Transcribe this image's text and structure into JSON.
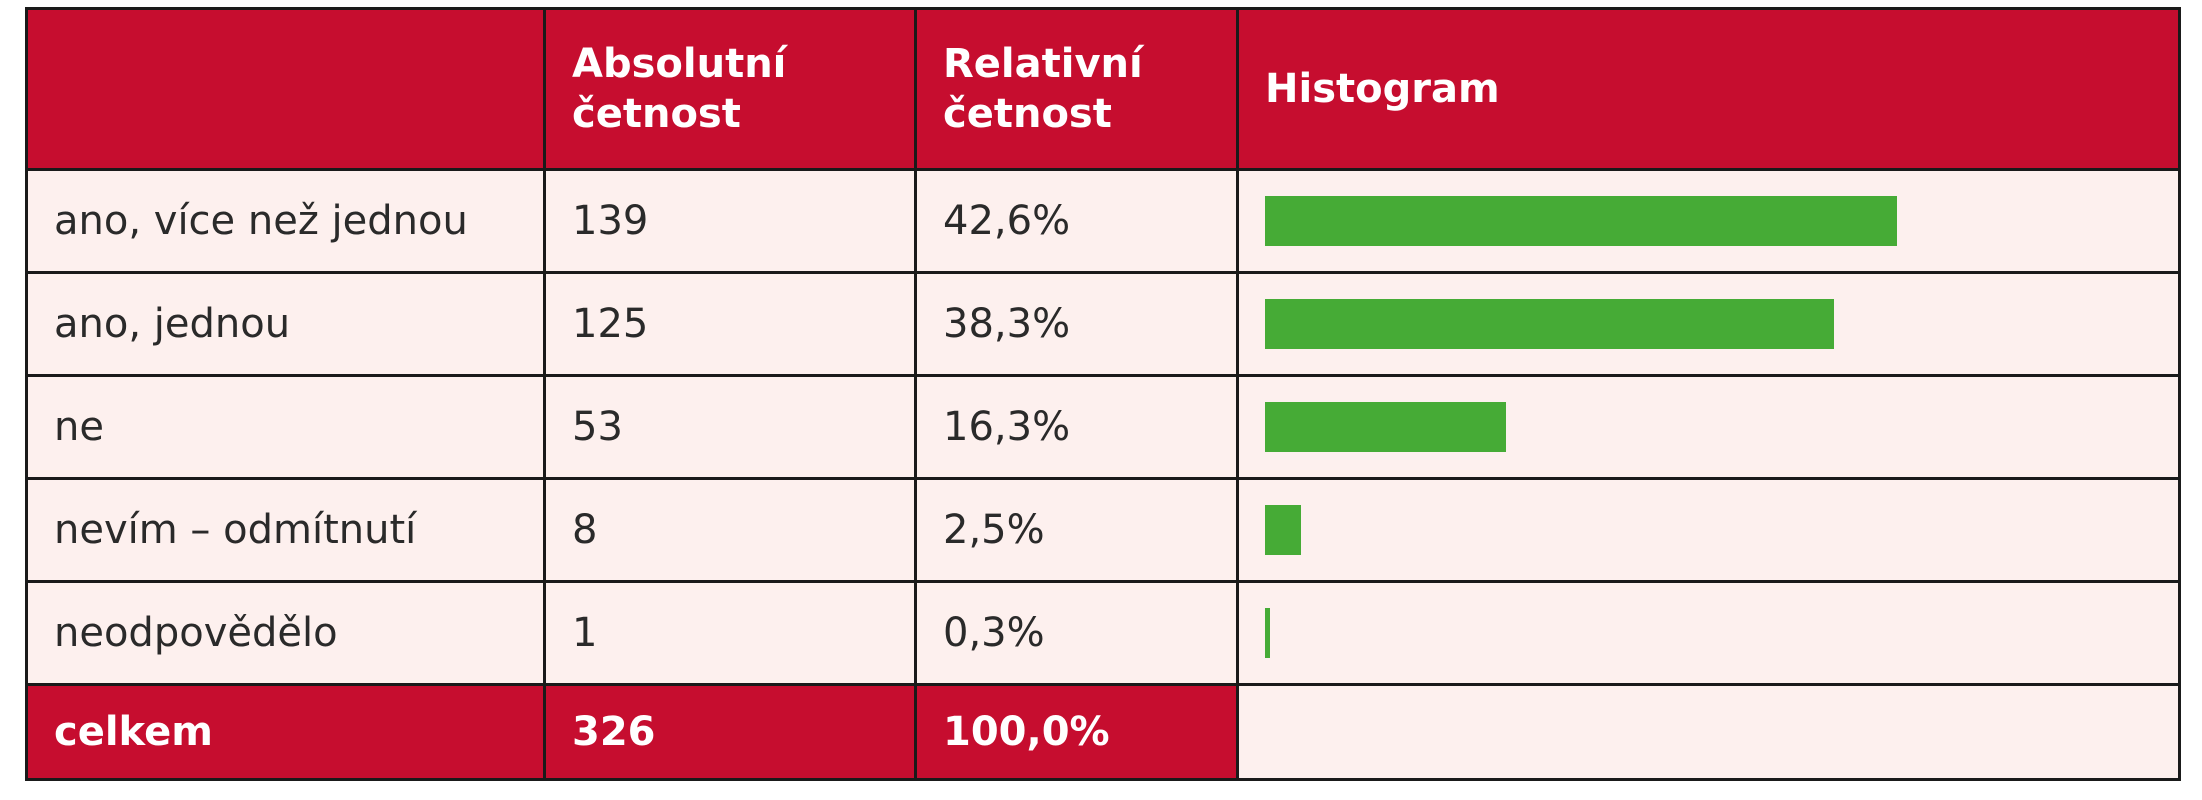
{
  "table": {
    "header": {
      "absolute": "Absolutní\nčetnost",
      "relative": "Relativní\nčetnost",
      "histogram": "Histogram"
    },
    "rows": [
      {
        "label": "ano, více než jednou",
        "absolute": 139,
        "relative": "42,6%"
      },
      {
        "label": "ano, jednou",
        "absolute": 125,
        "relative": "38,3%"
      },
      {
        "label": "ne",
        "absolute": 53,
        "relative": "16,3%"
      },
      {
        "label": "nevím – odmítnutí",
        "absolute": 8,
        "relative": "2,5%"
      },
      {
        "label": "neodpovědělo",
        "absolute": 1,
        "relative": "0,3%"
      }
    ],
    "total": {
      "label": "celkem",
      "absolute": 326,
      "relative": "100,0%"
    },
    "bar_color": "#46ab36"
  }
}
